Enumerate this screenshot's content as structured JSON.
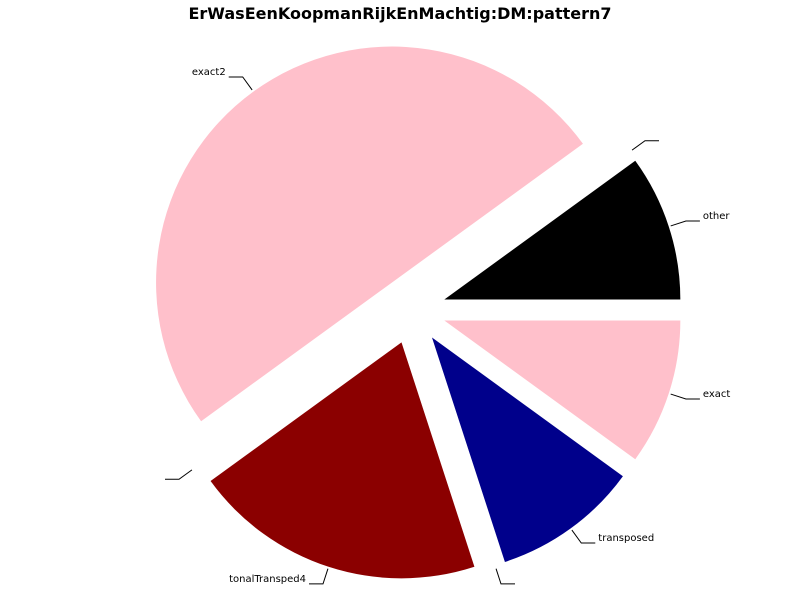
{
  "chart_data": {
    "type": "pie",
    "title": "ErWasEenKoopmanRijkEnMachtig:DM:pattern7",
    "series": [
      {
        "values": [
          {
            "label": "other",
            "value": 10,
            "color": "#000000"
          },
          {
            "label": "",
            "value": 0
          },
          {
            "label": "exact2",
            "value": 50,
            "color": "#ffc0cb"
          },
          {
            "label": "",
            "value": 0
          },
          {
            "label": "tonalTransped4",
            "value": 20,
            "color": "#8b0000"
          },
          {
            "label": "",
            "value": 0
          },
          {
            "label": "transposed",
            "value": 10,
            "color": "#00008b"
          },
          {
            "label": "exact",
            "value": 10,
            "color": "#ffc0cb"
          }
        ]
      }
    ]
  }
}
